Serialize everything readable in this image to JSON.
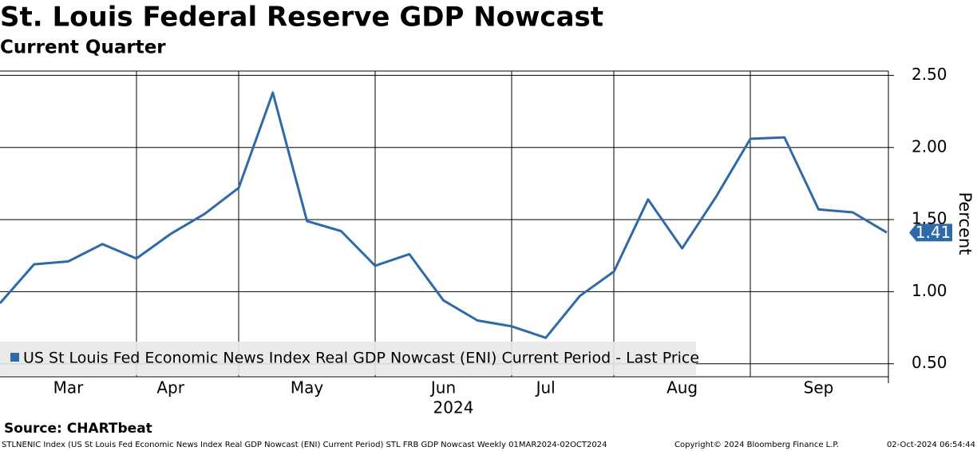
{
  "chart_data": {
    "type": "line",
    "title": "St. Louis Federal Reserve GDP Nowcast",
    "subtitle": "Current Quarter",
    "y_label": "Percent",
    "x_year": "2024",
    "categories": [
      null,
      null,
      "Mar",
      null,
      null,
      "Apr",
      null,
      null,
      null,
      "May",
      null,
      null,
      null,
      "Jun",
      null,
      null,
      "Jul",
      null,
      null,
      null,
      "Aug",
      null,
      null,
      null,
      "Sep",
      null,
      null
    ],
    "series": [
      {
        "name": "US St Louis Fed Economic News Index Real GDP Nowcast (ENI) Current Period - Last Price",
        "color": "#2e6aa8",
        "values": [
          0.92,
          1.19,
          1.21,
          1.33,
          1.23,
          1.4,
          1.54,
          1.72,
          2.38,
          1.49,
          1.42,
          1.18,
          1.26,
          0.94,
          0.8,
          0.76,
          0.68,
          0.97,
          1.14,
          1.64,
          1.3,
          1.66,
          2.06,
          2.07,
          1.57,
          1.55,
          1.41
        ]
      }
    ],
    "ylim": [
      0.41,
      2.53
    ],
    "yticks": [
      {
        "value": 0.5,
        "label": "0.50"
      },
      {
        "value": 1,
        "label": "1.00"
      },
      {
        "value": 1.5,
        "label": "1.50"
      },
      {
        "value": 2,
        "label": "2.00"
      },
      {
        "value": 2.5,
        "label": "2.50"
      }
    ],
    "grid": true,
    "legend": "bottom-left",
    "footer": {
      "source": "Source: CHARTbeat",
      "description": "STLNENIC Index (US St Louis Fed Economic News Index Real GDP Nowcast (ENI) Current Period) STL FRB GDP Nowcast  Weekly 01MAR2024-02OCT2024",
      "copyright": "Copyright© 2024 Bloomberg Finance L.P.",
      "timestamp": "02-Oct-2024 06:54:44"
    }
  }
}
